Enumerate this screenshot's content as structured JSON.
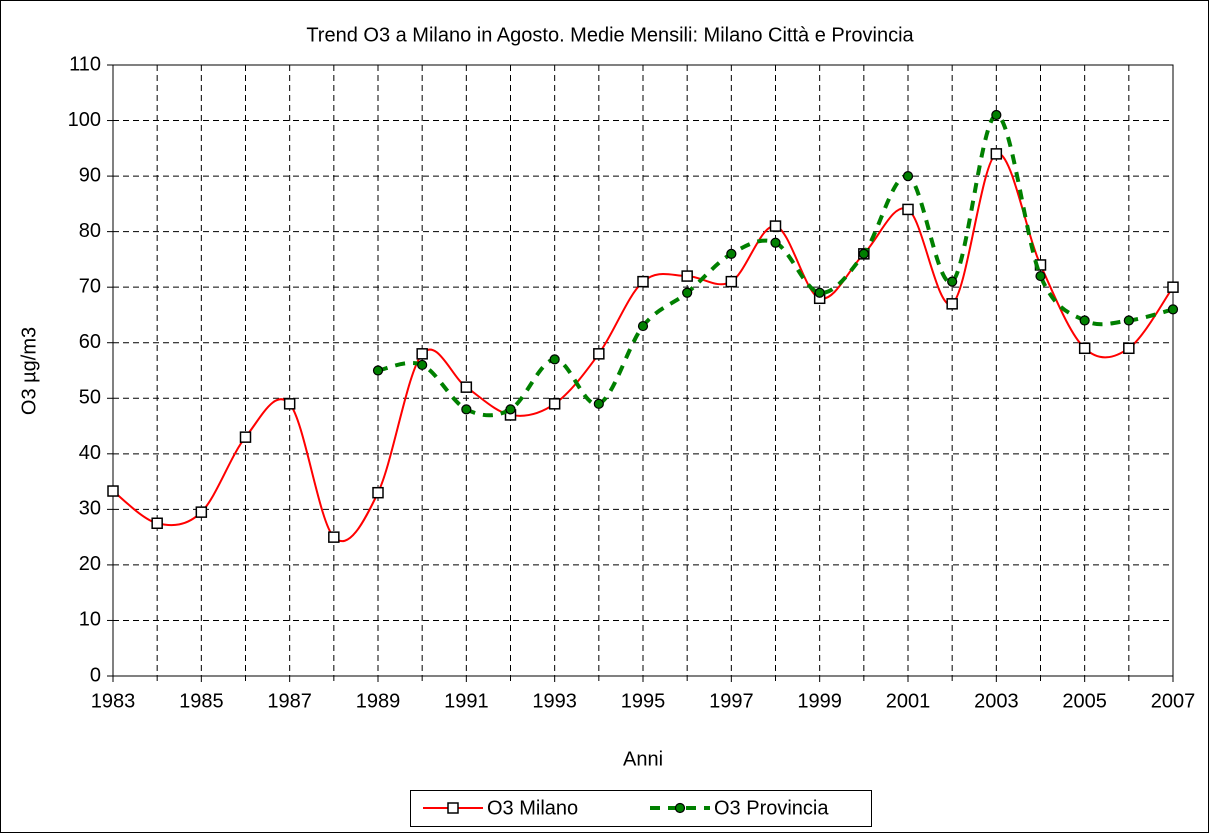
{
  "chart_data": {
    "type": "line",
    "title": "Trend O3 a Milano in Agosto.  Medie Mensili: Milano Città e Provincia",
    "xlabel": "Anni",
    "ylabel": "O3 µg/m3",
    "x": [
      1983,
      1984,
      1985,
      1986,
      1987,
      1988,
      1989,
      1990,
      1991,
      1992,
      1993,
      1994,
      1995,
      1996,
      1997,
      1998,
      1999,
      2000,
      2001,
      2002,
      2003,
      2004,
      2005,
      2006,
      2007
    ],
    "series": [
      {
        "name": "O3 Milano",
        "color": "#ff0000",
        "marker": "square",
        "dashed": false,
        "values": [
          33.3,
          27.5,
          29.5,
          43,
          49,
          25,
          33,
          58,
          52,
          47,
          49,
          58,
          71,
          72,
          71,
          81,
          68,
          76,
          84,
          67,
          94,
          74,
          59,
          59,
          70
        ]
      },
      {
        "name": "O3 Provincia",
        "color": "#008000",
        "marker": "circle",
        "dashed": true,
        "values": [
          null,
          null,
          null,
          null,
          null,
          null,
          55,
          56,
          48,
          48,
          57,
          49,
          63,
          69,
          76,
          78,
          69,
          76,
          90,
          71,
          101,
          72,
          64,
          64,
          66
        ]
      }
    ],
    "xlim": [
      1983,
      2007
    ],
    "xticks": [
      1983,
      1985,
      1987,
      1989,
      1991,
      1993,
      1995,
      1997,
      1999,
      2001,
      2003,
      2005,
      2007
    ],
    "xminor_ticks": [
      1984,
      1986,
      1988,
      1990,
      1992,
      1994,
      1996,
      1998,
      2000,
      2002,
      2004,
      2006
    ],
    "ylim": [
      0,
      110
    ],
    "yticks": [
      0,
      10,
      20,
      30,
      40,
      50,
      60,
      70,
      80,
      90,
      100,
      110
    ],
    "grid": true,
    "legend": "bottom"
  }
}
